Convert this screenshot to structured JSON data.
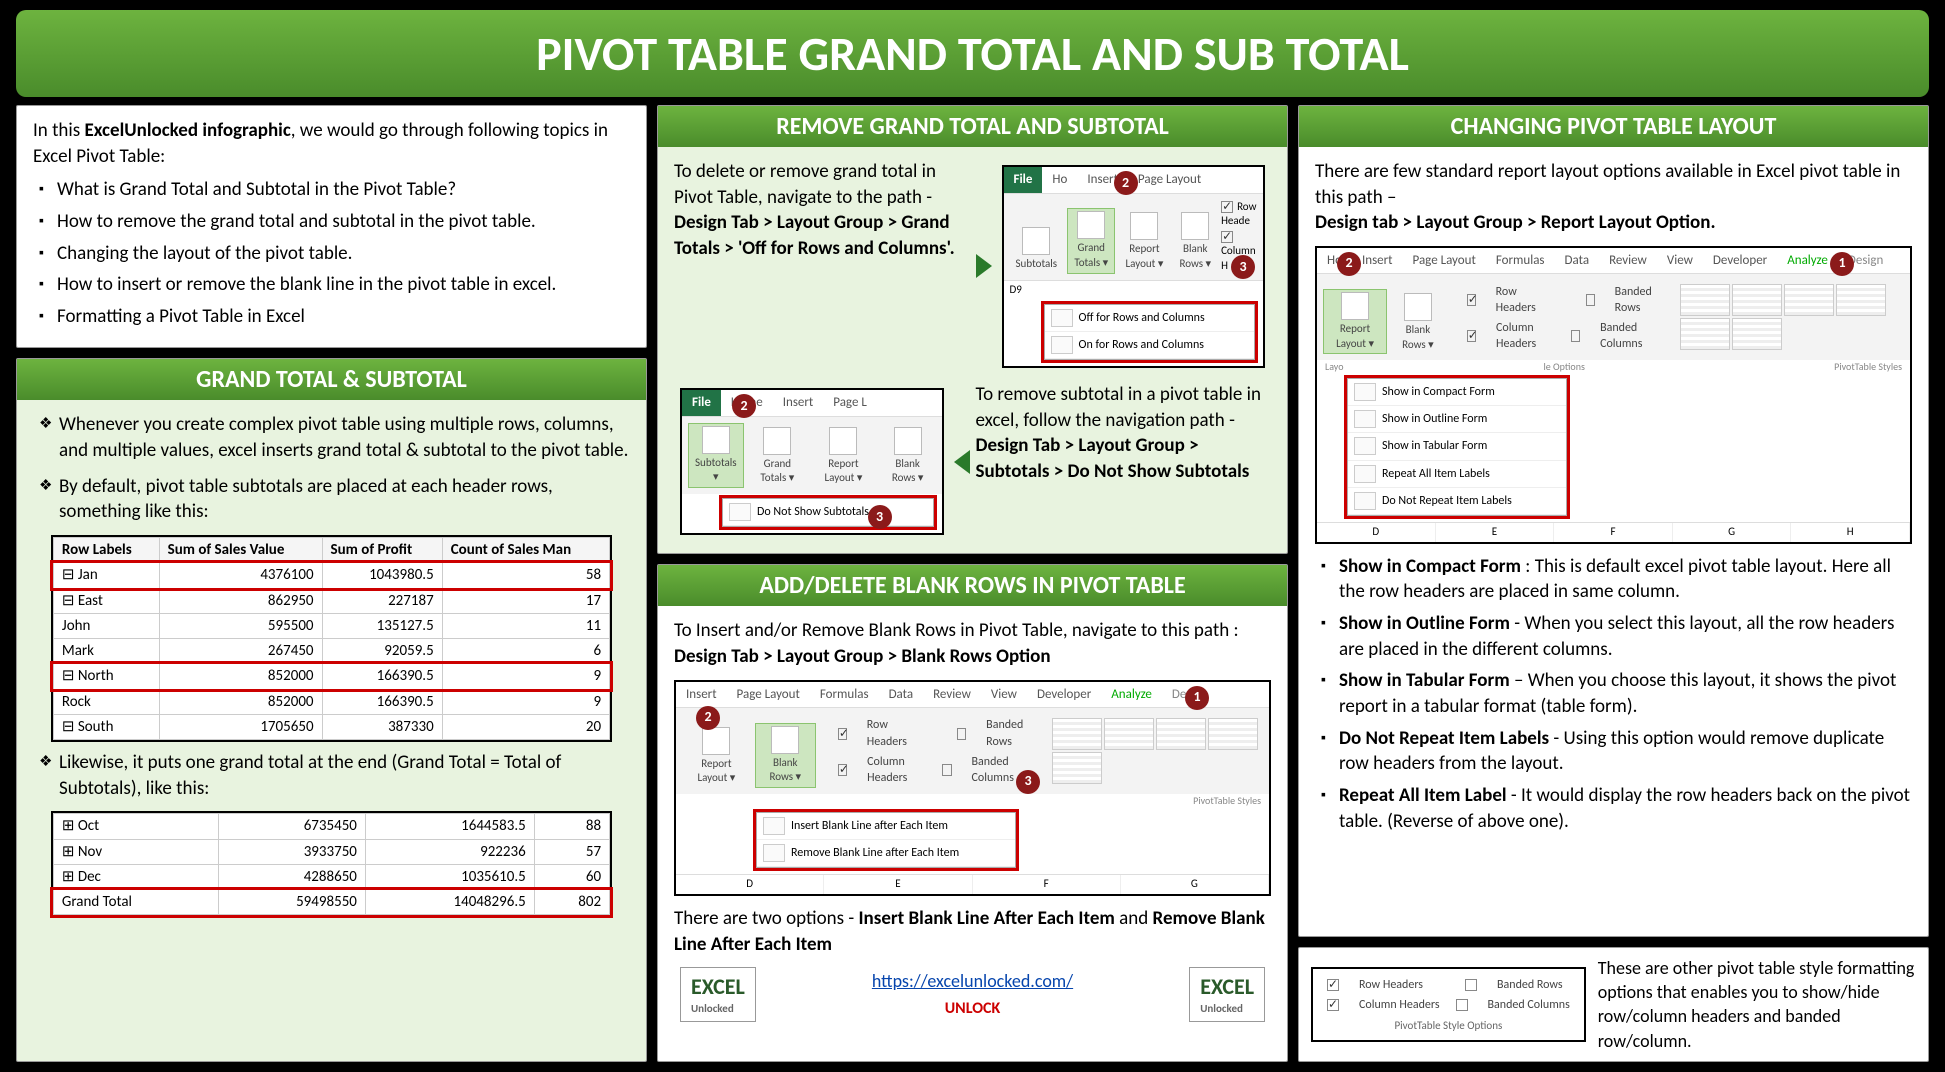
{
  "title": "PIVOT TABLE GRAND TOTAL AND SUB TOTAL",
  "intro": {
    "lead_prefix": "In this ",
    "lead_bold": "ExcelUnlocked infographic",
    "lead_suffix": ", we would go through following topics in Excel Pivot Table:",
    "topics": [
      "What is Grand Total and Subtotal in the Pivot Table?",
      "How to remove the grand total and subtotal in the pivot table.",
      "Changing the layout of the pivot table.",
      "How to insert or remove the blank line in the pivot table in excel.",
      "Formatting a Pivot Table in Excel"
    ]
  },
  "sec1": {
    "header": "GRAND TOTAL & SUBTOTAL",
    "p1": "Whenever you create complex pivot table using multiple rows, columns, and multiple values, excel inserts grand total & subtotal to the pivot table.",
    "p2": "By default, pivot table subtotals are placed at each header rows, something like this:",
    "p3": "Likewise, it puts one grand total at the end (Grand Total = Total of Subtotals), like this:",
    "table1": {
      "cols": [
        "Row Labels",
        "Sum of Sales Value",
        "Sum of Profit",
        "Count of Sales Man"
      ],
      "rows": [
        [
          "⊟ Jan",
          "4376100",
          "1043980.5",
          "58"
        ],
        [
          "  ⊟ East",
          "862950",
          "227187",
          "17"
        ],
        [
          "    John",
          "595500",
          "135127.5",
          "11"
        ],
        [
          "    Mark",
          "267450",
          "92059.5",
          "6"
        ],
        [
          "  ⊟ North",
          "852000",
          "166390.5",
          "9"
        ],
        [
          "    Rock",
          "852000",
          "166390.5",
          "9"
        ],
        [
          "  ⊟ South",
          "1705650",
          "387330",
          "20"
        ]
      ],
      "hl_rows": [
        0,
        4
      ]
    },
    "table2": {
      "rows": [
        [
          "⊞ Oct",
          "6735450",
          "1644583.5",
          "88"
        ],
        [
          "⊞ Nov",
          "3933750",
          "922236",
          "57"
        ],
        [
          "⊞ Dec",
          "4288650",
          "1035610.5",
          "60"
        ],
        [
          "Grand Total",
          "59498550",
          "14048296.5",
          "802"
        ]
      ],
      "hl_rows": [
        3
      ]
    }
  },
  "sec2": {
    "header": "REMOVE GRAND TOTAL AND SUBTOTAL",
    "p1_pre": "To delete or remove grand total in Pivot Table, navigate to the path - ",
    "p1_bold": "Design Tab > Layout Group > Grand Totals > 'Off for Rows and Columns'.",
    "p2_pre": "To remove subtotal in a pivot table in excel, follow the navigation path - ",
    "p2_bold": "Design Tab > Layout Group > Subtotals > Do Not Show Subtotals",
    "shot1": {
      "tabs": [
        "File",
        "Ho",
        "Insert",
        "Page Layout"
      ],
      "btns": [
        "Subtotals",
        "Grand Totals ▾",
        "Report Layout ▾",
        "Blank Rows ▾"
      ],
      "checks": [
        "Row Heade",
        "Column H"
      ],
      "menu": [
        "Off for Rows and Columns",
        "On for Rows and Columns"
      ],
      "cell": "D9"
    },
    "shot2": {
      "tabs": [
        "File",
        "Home",
        "Insert",
        "Page L"
      ],
      "btns": [
        "Subtotals ▾",
        "Grand Totals ▾",
        "Report Layout ▾",
        "Blank Rows ▾"
      ],
      "menu": [
        "Do Not Show Subtotals"
      ]
    }
  },
  "sec3": {
    "header": "ADD/DELETE BLANK ROWS IN PIVOT TABLE",
    "p1": "To Insert and/or Remove Blank Rows in Pivot Table, navigate to this path :",
    "p1b": "Design Tab > Layout Group > Blank Rows Option",
    "p2_pre": "There are two options - ",
    "p2_b1": "Insert Blank Line After Each Item",
    "p2_mid": " and ",
    "p2_b2": "Remove Blank Line After Each Item",
    "shot": {
      "tabs": [
        "Insert",
        "Page Layout",
        "Formulas",
        "Data",
        "Review",
        "View",
        "Developer",
        "Analyze",
        "Design"
      ],
      "btns": [
        "Report Layout ▾",
        "Blank Rows ▾"
      ],
      "checks1": [
        "Row Headers",
        "Banded Rows"
      ],
      "checks2": [
        "Column Headers",
        "Banded Columns"
      ],
      "menu": [
        "Insert Blank Line after Each Item",
        "Remove Blank Line after Each Item"
      ],
      "gallery_label": "PivotTable Styles",
      "gridcols": [
        "D",
        "E",
        "F",
        "G"
      ]
    }
  },
  "sec4": {
    "header": "CHANGING PIVOT TABLE LAYOUT",
    "p1": "There are few standard report layout options available in Excel pivot table in this path –",
    "p1b": "Design tab > Layout Group > Report Layout Option.",
    "shot": {
      "tabs": [
        "Ho",
        "Insert",
        "Page Layout",
        "Formulas",
        "Data",
        "Review",
        "View",
        "Developer",
        "Analyze",
        "Design"
      ],
      "btns": [
        "Report Layout ▾",
        "Blank Rows ▾"
      ],
      "checks1": [
        "Row Headers",
        "Banded Rows"
      ],
      "checks2": [
        "Column Headers",
        "Banded Columns"
      ],
      "menu": [
        "Show in Compact Form",
        "Show in Outline Form",
        "Show in Tabular Form",
        "Repeat All Item Labels",
        "Do Not Repeat Item Labels"
      ],
      "layo": "Layo",
      "le_options": "le Options",
      "gallery_label": "PivotTable Styles",
      "gridcols": [
        "D",
        "E",
        "F",
        "G",
        "H"
      ]
    },
    "items": [
      {
        "b": "Show in Compact Form",
        "t": " : This is default excel pivot table layout. Here all the row headers are placed in same column."
      },
      {
        "b": "Show in Outline Form",
        "t": " - When you select this layout, all the row headers are placed in the different columns."
      },
      {
        "b": "Show in Tabular Form",
        "t": " – When you choose this layout, it shows the pivot report in a tabular format (table form)."
      },
      {
        "b": "Do Not Repeat Item Labels",
        "t": " - Using this option would remove duplicate row headers from the layout."
      },
      {
        "b": "Repeat All Item Label",
        "t": " - It would display the row headers back on the pivot table. (Reverse of above one)."
      }
    ],
    "styleopts": {
      "c1": [
        "Row Headers",
        "Column Headers"
      ],
      "c2": [
        "Banded Rows",
        "Banded Columns"
      ],
      "lbl": "PivotTable Style Options",
      "t": "These are other pivot table style formatting options that enables you to show/hide row/column headers and banded row/column."
    }
  },
  "footer": {
    "logo_main": "EXCEL",
    "logo_sub": "Unlocked",
    "link": "https://excelunlocked.com/",
    "unlock": "UNLOCK"
  }
}
